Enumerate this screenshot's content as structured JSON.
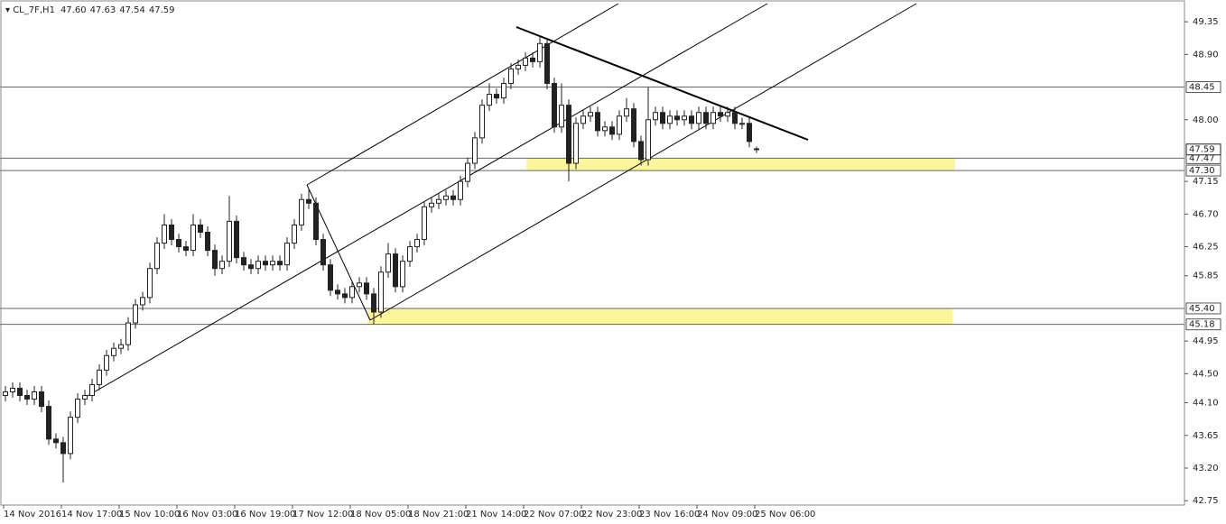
{
  "chart_data": {
    "type": "candlestick",
    "symbol": "CL_7F,H1",
    "header_ohlc": [
      "47.60",
      "47.63",
      "47.54",
      "47.59"
    ],
    "ylim": [
      42.69,
      49.65
    ],
    "yticks": [
      {
        "value": 49.35,
        "label": "49.35"
      },
      {
        "value": 48.9,
        "label": "48.90"
      },
      {
        "value": 48.0,
        "label": "48.00"
      },
      {
        "value": 47.15,
        "label": "47.15"
      },
      {
        "value": 46.7,
        "label": "46.70"
      },
      {
        "value": 46.25,
        "label": "46.25"
      },
      {
        "value": 45.85,
        "label": "45.85"
      },
      {
        "value": 44.95,
        "label": "44.95"
      },
      {
        "value": 44.5,
        "label": "44.50"
      },
      {
        "value": 44.1,
        "label": "44.10"
      },
      {
        "value": 43.65,
        "label": "43.65"
      },
      {
        "value": 43.2,
        "label": "43.20"
      },
      {
        "value": 42.75,
        "label": "42.75"
      }
    ],
    "levels": [
      {
        "value": 48.45,
        "label": "48.45"
      },
      {
        "value": 47.47,
        "label": "47.47"
      },
      {
        "value": 47.3,
        "label": "47.30"
      },
      {
        "value": 45.4,
        "label": "45.40"
      },
      {
        "value": 45.18,
        "label": "45.18"
      }
    ],
    "current_price": {
      "value": 47.59,
      "label": "47.59"
    },
    "x_labels": [
      "14 Nov 2016",
      "14 Nov 17:00",
      "15 Nov 10:00",
      "16 Nov 03:00",
      "16 Nov 19:00",
      "17 Nov 12:00",
      "18 Nov 05:00",
      "18 Nov 21:00",
      "21 Nov 14:00",
      "22 Nov 07:00",
      "22 Nov 23:00",
      "23 Nov 16:00",
      "24 Nov 09:00",
      "25 Nov 06:00"
    ],
    "candles": [
      [
        44.2,
        44.33,
        44.12,
        44.25
      ],
      [
        44.25,
        44.38,
        44.17,
        44.3
      ],
      [
        44.3,
        44.38,
        44.12,
        44.2
      ],
      [
        44.2,
        44.28,
        44.07,
        44.15
      ],
      [
        44.15,
        44.33,
        44.07,
        44.25
      ],
      [
        44.25,
        44.33,
        43.97,
        44.05
      ],
      [
        44.05,
        44.13,
        43.52,
        43.6
      ],
      [
        43.6,
        43.68,
        43.47,
        43.55
      ],
      [
        43.55,
        43.63,
        43.0,
        43.4
      ],
      [
        43.4,
        43.98,
        43.32,
        43.9
      ],
      [
        43.9,
        44.23,
        43.82,
        44.15
      ],
      [
        44.15,
        44.28,
        44.07,
        44.2
      ],
      [
        44.2,
        44.43,
        44.12,
        44.35
      ],
      [
        44.35,
        44.63,
        44.27,
        44.55
      ],
      [
        44.55,
        44.83,
        44.47,
        44.75
      ],
      [
        44.75,
        44.93,
        44.67,
        44.85
      ],
      [
        44.85,
        44.98,
        44.77,
        44.9
      ],
      [
        44.9,
        45.28,
        44.82,
        45.2
      ],
      [
        45.2,
        45.53,
        45.12,
        45.45
      ],
      [
        45.45,
        45.63,
        45.37,
        45.55
      ],
      [
        45.55,
        46.03,
        45.47,
        45.95
      ],
      [
        45.95,
        46.38,
        45.87,
        46.3
      ],
      [
        46.3,
        46.7,
        46.22,
        46.55
      ],
      [
        46.55,
        46.63,
        46.27,
        46.35
      ],
      [
        46.35,
        46.43,
        46.17,
        46.25
      ],
      [
        46.25,
        46.33,
        46.12,
        46.2
      ],
      [
        46.2,
        46.7,
        46.12,
        46.55
      ],
      [
        46.55,
        46.63,
        46.37,
        46.45
      ],
      [
        46.45,
        46.53,
        46.12,
        46.2
      ],
      [
        46.2,
        46.28,
        45.85,
        45.95
      ],
      [
        45.95,
        46.13,
        45.87,
        46.05
      ],
      [
        46.05,
        46.95,
        45.97,
        46.6
      ],
      [
        46.6,
        46.68,
        46.02,
        46.1
      ],
      [
        46.1,
        46.18,
        45.92,
        46.0
      ],
      [
        46.0,
        46.08,
        45.87,
        45.95
      ],
      [
        45.95,
        46.13,
        45.87,
        46.05
      ],
      [
        46.05,
        46.13,
        45.92,
        46.0
      ],
      [
        46.0,
        46.13,
        45.92,
        46.05
      ],
      [
        46.05,
        46.13,
        45.92,
        46.0
      ],
      [
        46.0,
        46.38,
        45.92,
        46.3
      ],
      [
        46.3,
        46.63,
        46.22,
        46.55
      ],
      [
        46.55,
        46.98,
        46.47,
        46.9
      ],
      [
        46.9,
        47.05,
        46.77,
        46.85
      ],
      [
        46.85,
        46.93,
        46.27,
        46.35
      ],
      [
        46.35,
        46.43,
        45.92,
        46.0
      ],
      [
        46.0,
        46.08,
        45.57,
        45.65
      ],
      [
        45.65,
        45.73,
        45.52,
        45.6
      ],
      [
        45.6,
        45.68,
        45.47,
        45.55
      ],
      [
        45.55,
        45.78,
        45.47,
        45.7
      ],
      [
        45.7,
        45.83,
        45.62,
        45.75
      ],
      [
        45.75,
        45.83,
        45.52,
        45.6
      ],
      [
        45.6,
        45.68,
        45.18,
        45.35
      ],
      [
        45.35,
        45.98,
        45.27,
        45.9
      ],
      [
        45.9,
        46.3,
        45.82,
        46.15
      ],
      [
        46.15,
        46.23,
        45.62,
        45.7
      ],
      [
        45.7,
        46.13,
        45.62,
        46.05
      ],
      [
        46.05,
        46.33,
        45.97,
        46.25
      ],
      [
        46.25,
        46.43,
        46.17,
        46.35
      ],
      [
        46.35,
        46.88,
        46.27,
        46.8
      ],
      [
        46.8,
        46.93,
        46.72,
        46.85
      ],
      [
        46.85,
        46.98,
        46.77,
        46.9
      ],
      [
        46.9,
        47.03,
        46.82,
        46.95
      ],
      [
        46.95,
        47.03,
        46.82,
        46.9
      ],
      [
        46.9,
        47.23,
        46.82,
        47.15
      ],
      [
        47.15,
        47.48,
        47.07,
        47.4
      ],
      [
        47.4,
        47.83,
        47.32,
        47.75
      ],
      [
        47.75,
        48.28,
        47.67,
        48.2
      ],
      [
        48.2,
        48.5,
        48.12,
        48.35
      ],
      [
        48.35,
        48.43,
        48.22,
        48.3
      ],
      [
        48.3,
        48.58,
        48.22,
        48.5
      ],
      [
        48.5,
        48.78,
        48.42,
        48.7
      ],
      [
        48.7,
        48.83,
        48.62,
        48.75
      ],
      [
        48.75,
        48.93,
        48.67,
        48.85
      ],
      [
        48.85,
        48.93,
        48.72,
        48.8
      ],
      [
        48.8,
        49.15,
        48.72,
        49.05
      ],
      [
        49.05,
        49.13,
        48.42,
        48.5
      ],
      [
        48.5,
        48.58,
        47.82,
        47.9
      ],
      [
        47.9,
        48.5,
        47.82,
        48.2
      ],
      [
        48.2,
        48.28,
        47.15,
        47.4
      ],
      [
        47.4,
        48.03,
        47.32,
        47.95
      ],
      [
        47.95,
        48.13,
        47.87,
        48.05
      ],
      [
        48.05,
        48.18,
        47.97,
        48.1
      ],
      [
        48.1,
        48.18,
        47.77,
        47.85
      ],
      [
        47.85,
        47.98,
        47.77,
        47.9
      ],
      [
        47.9,
        47.98,
        47.72,
        47.8
      ],
      [
        47.8,
        48.13,
        47.72,
        48.05
      ],
      [
        48.05,
        48.3,
        47.97,
        48.15
      ],
      [
        48.15,
        48.23,
        47.62,
        47.7
      ],
      [
        47.7,
        47.78,
        47.37,
        47.45
      ],
      [
        47.45,
        48.45,
        47.37,
        48.0
      ],
      [
        48.0,
        48.18,
        47.92,
        48.1
      ],
      [
        48.1,
        48.18,
        47.87,
        47.95
      ],
      [
        47.95,
        48.13,
        47.87,
        48.05
      ],
      [
        48.05,
        48.13,
        47.92,
        48.0
      ],
      [
        48.0,
        48.13,
        47.92,
        48.05
      ],
      [
        48.05,
        48.13,
        47.87,
        47.95
      ],
      [
        47.95,
        48.18,
        47.87,
        48.1
      ],
      [
        48.1,
        48.18,
        47.87,
        47.95
      ],
      [
        47.95,
        48.18,
        47.87,
        48.1
      ],
      [
        48.1,
        48.18,
        47.97,
        48.05
      ],
      [
        48.05,
        48.18,
        47.97,
        48.1
      ],
      [
        48.1,
        48.18,
        47.87,
        47.95
      ],
      [
        47.95,
        48.03,
        47.87,
        47.95
      ],
      [
        47.95,
        48.03,
        47.62,
        47.7
      ],
      [
        47.6,
        47.63,
        47.54,
        47.59
      ]
    ]
  }
}
